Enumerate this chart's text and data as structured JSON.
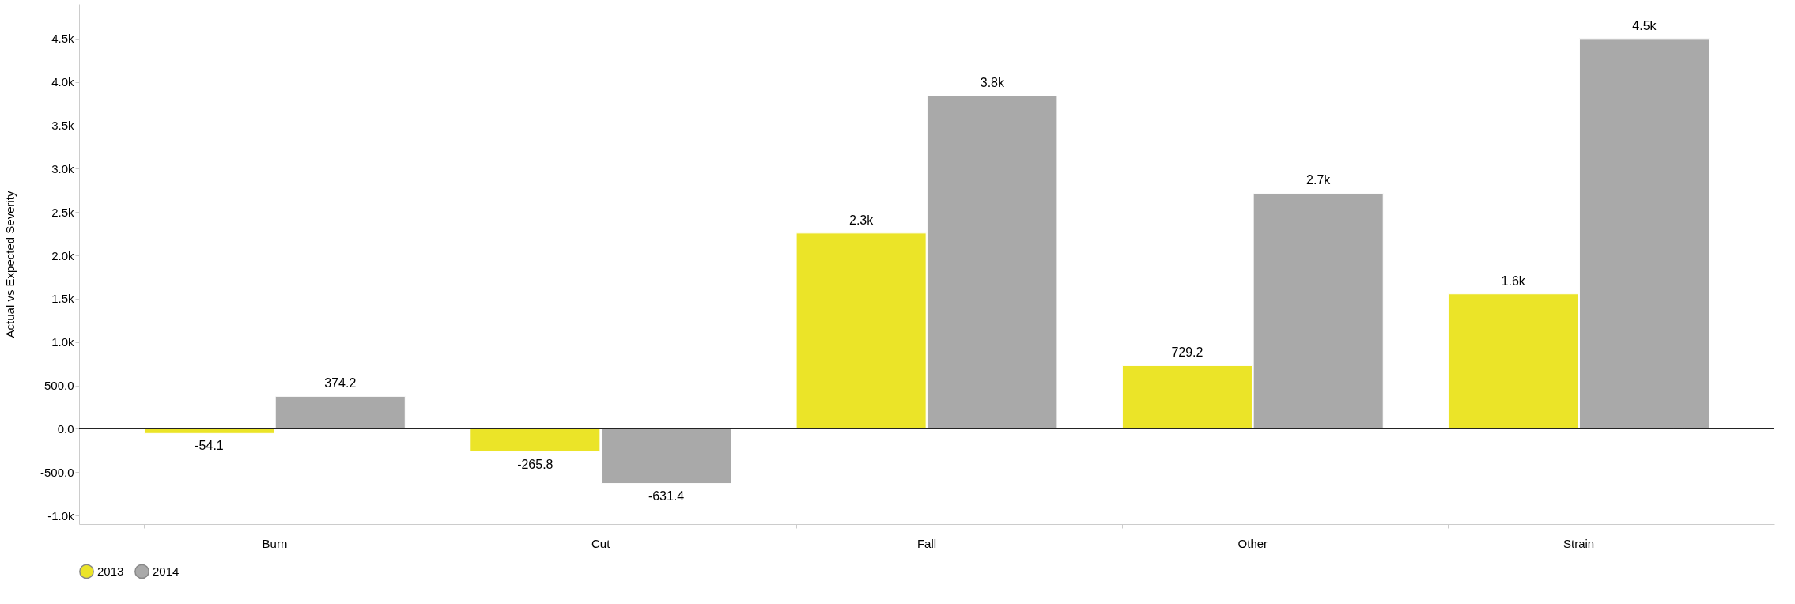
{
  "chart_data": {
    "type": "bar",
    "ylabel": "Actual vs Expected Severity",
    "categories": [
      "Burn",
      "Cut",
      "Fall",
      "Other",
      "Strain"
    ],
    "series": [
      {
        "name": "2013",
        "color": "#ebe428",
        "values": [
          -54.1,
          -265.8,
          2257,
          729.2,
          1556
        ],
        "value_labels": [
          "-54.1",
          "-265.8",
          "2.3k",
          "729.2",
          "1.6k"
        ]
      },
      {
        "name": "2014",
        "color": "#a9a9a9",
        "values": [
          374.2,
          -631.4,
          3839,
          2717,
          4500
        ],
        "value_labels": [
          "374.2",
          "-631.4",
          "3.8k",
          "2.7k",
          "4.5k"
        ]
      }
    ],
    "ylim": [
      -1100,
      4900
    ],
    "yticks": [
      {
        "value": -1000,
        "label": "-1.0k"
      },
      {
        "value": -500,
        "label": "-500.0"
      },
      {
        "value": 0,
        "label": "0.0"
      },
      {
        "value": 500,
        "label": "500.0"
      },
      {
        "value": 1000,
        "label": "1.0k"
      },
      {
        "value": 1500,
        "label": "1.5k"
      },
      {
        "value": 2000,
        "label": "2.0k"
      },
      {
        "value": 2500,
        "label": "2.5k"
      },
      {
        "value": 3000,
        "label": "3.0k"
      },
      {
        "value": 3500,
        "label": "3.5k"
      },
      {
        "value": 4000,
        "label": "4.0k"
      },
      {
        "value": 4500,
        "label": "4.5k"
      }
    ],
    "ref_lines": [
      {
        "axis": "y",
        "value": 0,
        "color": "#000000"
      }
    ],
    "grid": false,
    "legend": "bottom",
    "marker": "circle"
  }
}
